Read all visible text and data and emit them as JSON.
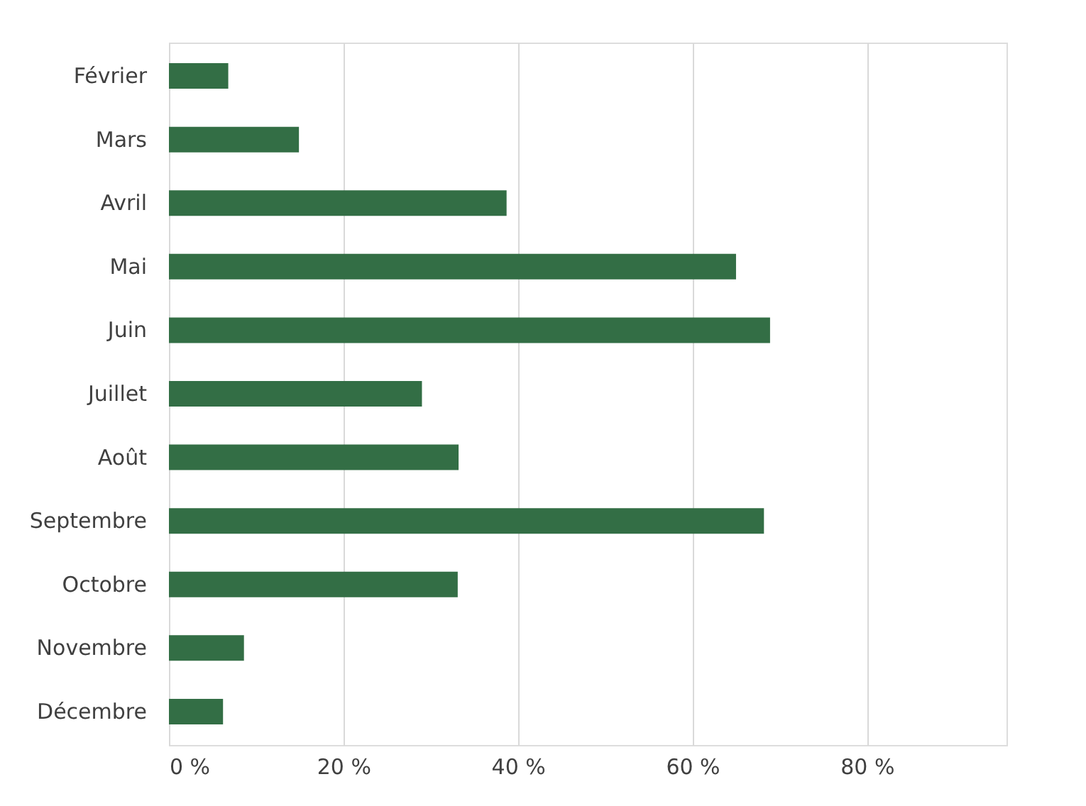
{
  "chart_data": {
    "type": "bar",
    "orientation": "horizontal",
    "categories": [
      "Février",
      "Mars",
      "Avril",
      "Mai",
      "Juin",
      "Juillet",
      "Août",
      "Septembre",
      "Octobre",
      "Novembre",
      "Décembre"
    ],
    "values": [
      6.8,
      14.9,
      38.7,
      65.0,
      68.9,
      29.0,
      33.2,
      68.2,
      33.1,
      8.6,
      6.2
    ],
    "color": "#336e45",
    "xlim": [
      0,
      96
    ],
    "xticks": [
      {
        "value": 0,
        "label": "0 %"
      },
      {
        "value": 20,
        "label": "20 %"
      },
      {
        "value": 40,
        "label": "40 %"
      },
      {
        "value": 60,
        "label": "60 %"
      },
      {
        "value": 80,
        "label": "80 %"
      }
    ],
    "grid": "x"
  }
}
